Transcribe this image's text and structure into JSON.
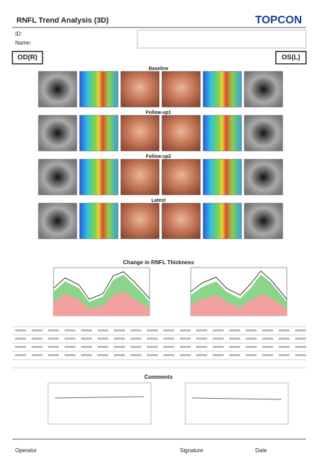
{
  "header": {
    "title": "RNFL Trend Analysis (3D)",
    "brand": "TOPCON",
    "id_label": "ID:",
    "name_label": "Name:"
  },
  "eyes": {
    "right": "OD(R)",
    "left": "OS(L)"
  },
  "rows": [
    "Baseline",
    "Follow-up1",
    "Follow-up2",
    "Latest"
  ],
  "sections": {
    "change": "Change in RNFL Thickness",
    "comments": "Comments"
  },
  "footer": {
    "operator": "Operator",
    "signature": "Signature",
    "date": "Date"
  }
}
